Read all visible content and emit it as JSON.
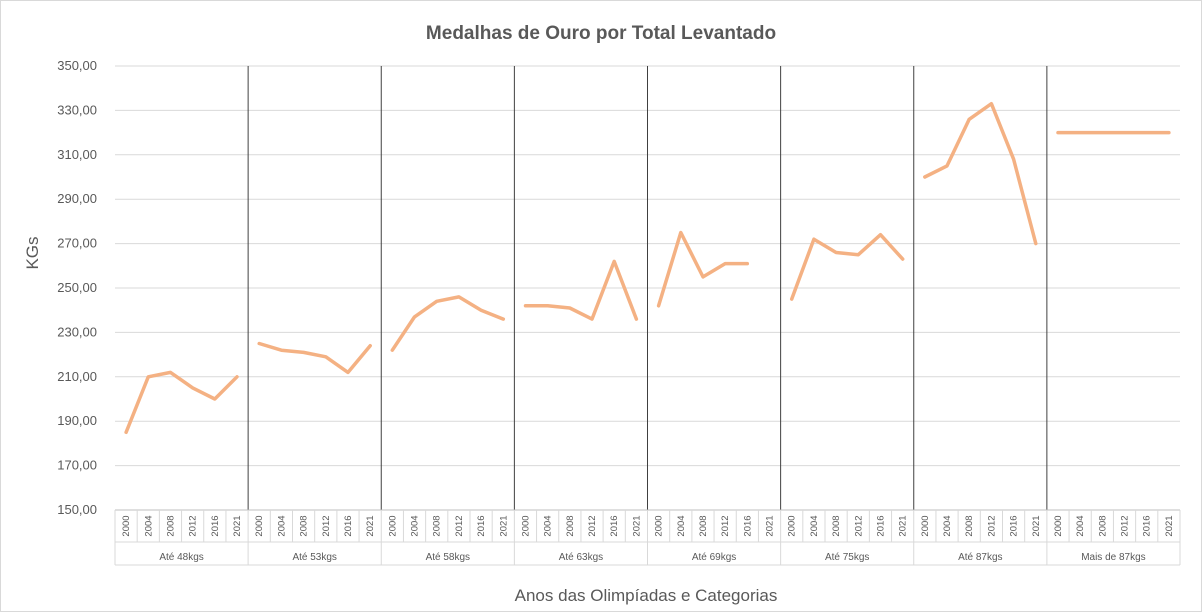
{
  "chart_data": {
    "type": "line",
    "title": "Medalhas de Ouro por Total Levantado",
    "xlabel": "Anos das Olimpíadas e Categorias",
    "ylabel": "KGs",
    "ylim": [
      150,
      350
    ],
    "yticks": [
      "150,00",
      "170,00",
      "190,00",
      "210,00",
      "230,00",
      "250,00",
      "270,00",
      "290,00",
      "310,00",
      "330,00",
      "350,00"
    ],
    "years": [
      "2000",
      "2004",
      "2008",
      "2012",
      "2016",
      "2021"
    ],
    "grid": true,
    "line_color": "#F4B183",
    "groups": [
      {
        "name": "Até 48kgs",
        "values": [
          185,
          210,
          212,
          205,
          200,
          210
        ]
      },
      {
        "name": "Até 53kgs",
        "values": [
          225,
          222,
          221,
          219,
          212,
          224
        ]
      },
      {
        "name": "Até 58kgs",
        "values": [
          222,
          237,
          244,
          246,
          240,
          236
        ]
      },
      {
        "name": "Até 63kgs",
        "values": [
          242,
          242,
          241,
          236,
          262,
          236
        ]
      },
      {
        "name": "Até 69kgs",
        "values": [
          242,
          275,
          255,
          261,
          261,
          null
        ]
      },
      {
        "name": "Até 75kgs",
        "values": [
          245,
          272,
          266,
          265,
          274,
          263
        ]
      },
      {
        "name": "Até 87kgs",
        "values": [
          300,
          305,
          326,
          333,
          308,
          270
        ]
      },
      {
        "name": "Mais de 87kgs",
        "values": [
          320,
          320,
          320,
          320,
          320,
          320
        ]
      }
    ]
  }
}
